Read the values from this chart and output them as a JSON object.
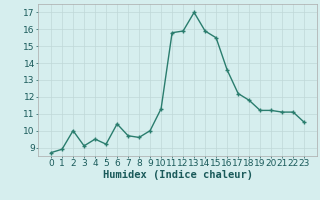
{
  "x": [
    0,
    1,
    2,
    3,
    4,
    5,
    6,
    7,
    8,
    9,
    10,
    11,
    12,
    13,
    14,
    15,
    16,
    17,
    18,
    19,
    20,
    21,
    22,
    23
  ],
  "y": [
    8.7,
    8.9,
    10.0,
    9.1,
    9.5,
    9.2,
    10.4,
    9.7,
    9.6,
    10.0,
    11.3,
    15.8,
    15.9,
    17.0,
    15.9,
    15.5,
    13.6,
    12.2,
    11.8,
    11.2,
    11.2,
    11.1,
    11.1,
    10.5
  ],
  "line_color": "#2a7d6e",
  "marker": "+",
  "marker_color": "#2a7d6e",
  "bg_color": "#d6eeee",
  "grid_color": "#c0d8d8",
  "xlabel": "Humidex (Indice chaleur)",
  "xlabel_fontsize": 7.5,
  "tick_fontsize": 6.5,
  "ylim": [
    8.5,
    17.5
  ],
  "yticks": [
    9,
    10,
    11,
    12,
    13,
    14,
    15,
    16,
    17
  ],
  "xticks": [
    0,
    1,
    2,
    3,
    4,
    5,
    6,
    7,
    8,
    9,
    10,
    11,
    12,
    13,
    14,
    15,
    16,
    17,
    18,
    19,
    20,
    21,
    22,
    23
  ],
  "line_width": 1.0,
  "marker_size": 3.5
}
